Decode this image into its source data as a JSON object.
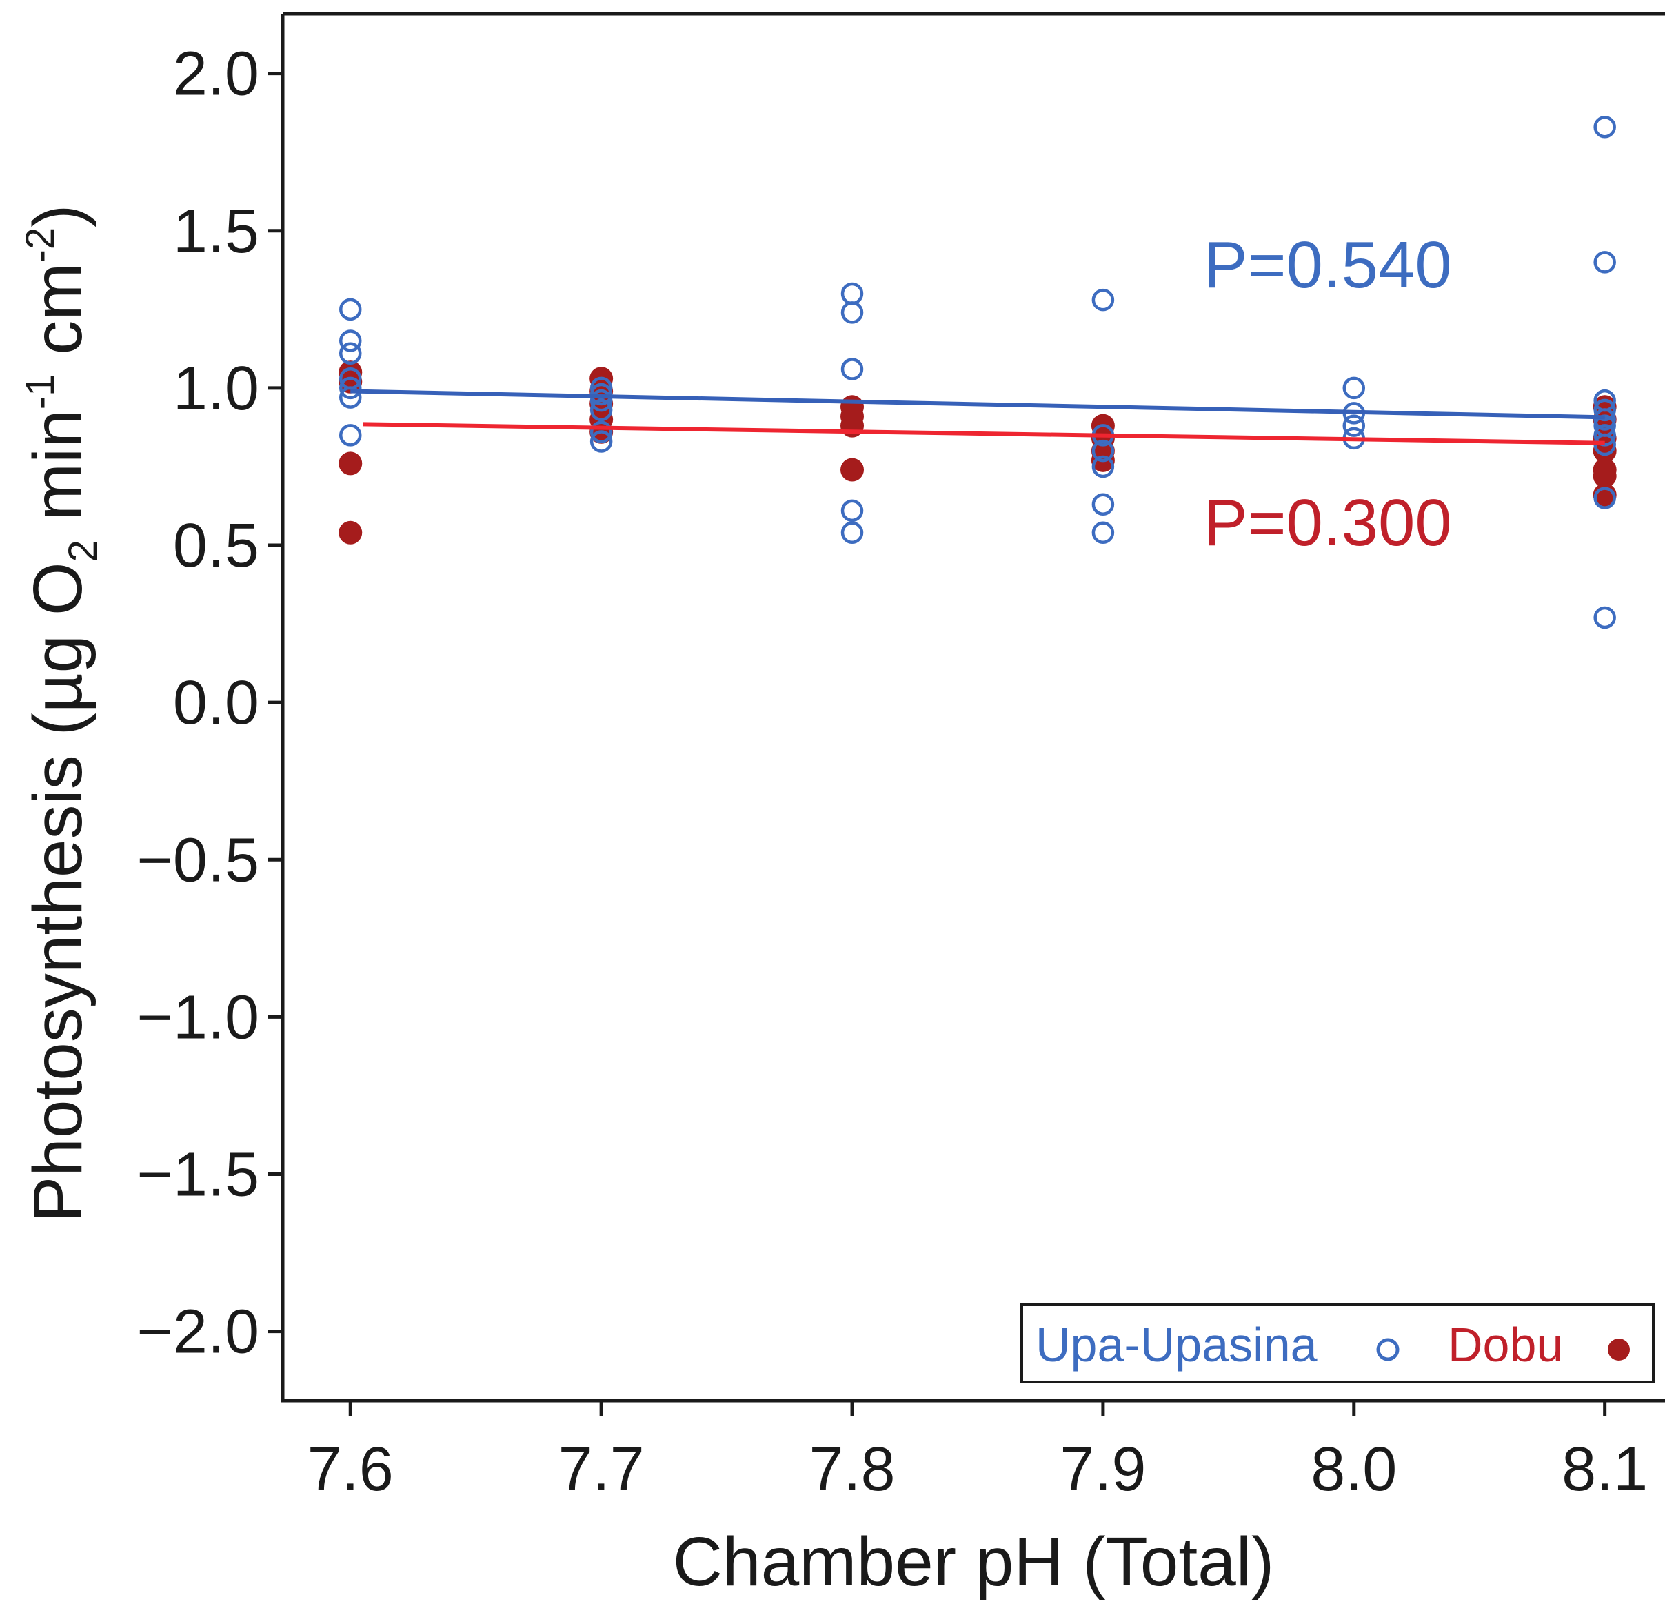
{
  "chart_data": {
    "type": "scatter",
    "xlabel": "Chamber pH (Total)",
    "ylabel": {
      "prefix": "Photosynthesis (µg O",
      "sub": "2",
      "middle": " min",
      "sup1": "-1",
      "unit2": " cm",
      "sup2": "-2",
      "suffix": ")"
    },
    "xlim": [
      7.573,
      8.124
    ],
    "ylim": [
      -2.22,
      2.19
    ],
    "x_ticks": [
      7.6,
      7.7,
      7.8,
      7.9,
      8.0,
      8.1
    ],
    "x_tick_labels": [
      "7.6",
      "7.7",
      "7.8",
      "7.9",
      "8.0",
      "8.1"
    ],
    "y_ticks": [
      2.0,
      1.5,
      1.0,
      0.5,
      0.0,
      -0.5,
      -1.0,
      -1.5,
      -2.0
    ],
    "y_tick_labels": [
      "2.0",
      "1.5",
      "1.0",
      "0.5",
      "0.0",
      "−0.5",
      "−1.0",
      "−1.5",
      "−2.0"
    ],
    "grid": false,
    "legend_position": "bottom-right",
    "series": [
      {
        "name": "Upa-Upasina",
        "marker": "open-circle",
        "color": "#3d6cc0",
        "line_color": "#3660b8",
        "points": [
          [
            7.6,
            1.25
          ],
          [
            7.6,
            1.15
          ],
          [
            7.6,
            1.11
          ],
          [
            7.6,
            1.03
          ],
          [
            7.6,
            1.0
          ],
          [
            7.6,
            0.97
          ],
          [
            7.6,
            0.85
          ],
          [
            7.7,
            1.0
          ],
          [
            7.7,
            0.98
          ],
          [
            7.7,
            0.96
          ],
          [
            7.7,
            0.93
          ],
          [
            7.7,
            0.86
          ],
          [
            7.7,
            0.83
          ],
          [
            7.8,
            1.3
          ],
          [
            7.8,
            1.24
          ],
          [
            7.8,
            1.06
          ],
          [
            7.8,
            0.61
          ],
          [
            7.8,
            0.54
          ],
          [
            7.9,
            1.28
          ],
          [
            7.9,
            0.85
          ],
          [
            7.9,
            0.8
          ],
          [
            7.9,
            0.75
          ],
          [
            7.9,
            0.63
          ],
          [
            7.9,
            0.54
          ],
          [
            8.0,
            1.0
          ],
          [
            8.0,
            0.92
          ],
          [
            8.0,
            0.88
          ],
          [
            8.0,
            0.84
          ],
          [
            8.1,
            1.83
          ],
          [
            8.1,
            1.4
          ],
          [
            8.1,
            0.96
          ],
          [
            8.1,
            0.93
          ],
          [
            8.1,
            0.9
          ],
          [
            8.1,
            0.88
          ],
          [
            8.1,
            0.85
          ],
          [
            8.1,
            0.82
          ],
          [
            8.1,
            0.65
          ],
          [
            8.1,
            0.27
          ]
        ],
        "fit": [
          [
            7.6,
            0.99
          ],
          [
            8.1,
            0.907
          ]
        ],
        "annotation": "P=0.540",
        "annotation_x": 7.94,
        "annotation_y": 1.32
      },
      {
        "name": "Dobu",
        "marker": "filled-circle",
        "color": "#a51c1c",
        "line_color": "#ee2530",
        "points": [
          [
            7.6,
            1.05
          ],
          [
            7.6,
            1.02
          ],
          [
            7.6,
            0.76
          ],
          [
            7.6,
            0.54
          ],
          [
            7.7,
            1.03
          ],
          [
            7.7,
            0.99
          ],
          [
            7.7,
            0.95
          ],
          [
            7.7,
            0.9
          ],
          [
            7.7,
            0.86
          ],
          [
            7.8,
            0.94
          ],
          [
            7.8,
            0.91
          ],
          [
            7.8,
            0.88
          ],
          [
            7.8,
            0.74
          ],
          [
            7.9,
            0.88
          ],
          [
            7.9,
            0.84
          ],
          [
            7.9,
            0.8
          ],
          [
            7.9,
            0.77
          ],
          [
            8.1,
            0.94
          ],
          [
            8.1,
            0.9
          ],
          [
            8.1,
            0.84
          ],
          [
            8.1,
            0.8
          ],
          [
            8.1,
            0.74
          ],
          [
            8.1,
            0.72
          ],
          [
            8.1,
            0.66
          ]
        ],
        "fit": [
          [
            7.605,
            0.885
          ],
          [
            8.1,
            0.825
          ]
        ],
        "annotation": "P=0.300",
        "annotation_x": 7.94,
        "annotation_y": 0.5
      }
    ]
  }
}
